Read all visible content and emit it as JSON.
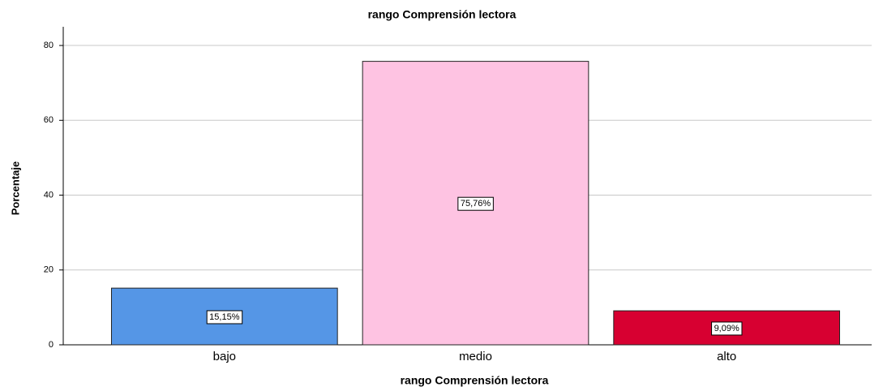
{
  "chart_data": {
    "type": "bar",
    "title": "rango Comprensión lectora",
    "x_label": "rango Comprensión lectora",
    "y_label": "Porcentaje",
    "categories": [
      "bajo",
      "medio",
      "alto"
    ],
    "values": [
      15.15,
      75.76,
      9.09
    ],
    "value_labels": [
      "15,15%",
      "75,76%",
      "9,09%"
    ],
    "colors": [
      "#5596e6",
      "#fec3e2",
      "#d70031"
    ],
    "ylim": [
      0,
      85
    ],
    "yticks": [
      0,
      20,
      40,
      60,
      80
    ],
    "grid": true
  }
}
